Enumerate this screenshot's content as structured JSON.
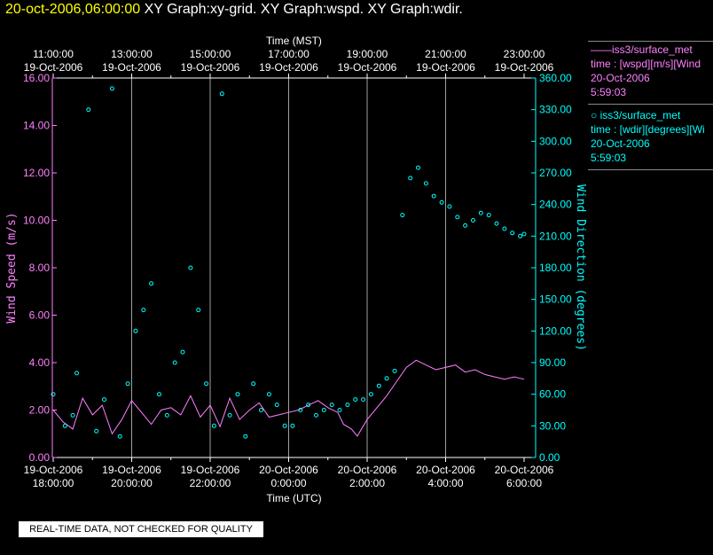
{
  "title": {
    "date": "20-oct-2006,06:00:00",
    "graphs": "XY Graph:xy-grid.  XY Graph:wspd.  XY Graph:wdir."
  },
  "footer_note": "REAL-TIME DATA, NOT CHECKED FOR QUALITY",
  "legend": [
    {
      "marker": "line",
      "name": "iss3/surface_met",
      "field": "time : [wspd][m/s][Wind",
      "date": "20-Oct-2006",
      "time": "5:59:03",
      "color": "#ff80ff"
    },
    {
      "marker": "circle",
      "name": "iss3/surface_met",
      "field": "time : [wdir][degrees][Wi",
      "date": "20-Oct-2006",
      "time": "5:59:03",
      "color": "#00ffff"
    }
  ],
  "colors": {
    "wspd": "#ff80ff",
    "wdir": "#00ffff",
    "grid": "#a0a0a0",
    "axis": "#ffffff"
  },
  "chart_data": {
    "type": "line",
    "top_axis_label": "Time (MST)",
    "bottom_axis_label": "Time (UTC)",
    "top_ticks": [
      {
        "d": "19-Oct-2006",
        "t": "11:00:00"
      },
      {
        "d": "19-Oct-2006",
        "t": "13:00:00"
      },
      {
        "d": "19-Oct-2006",
        "t": "15:00:00"
      },
      {
        "d": "19-Oct-2006",
        "t": "17:00:00"
      },
      {
        "d": "19-Oct-2006",
        "t": "19:00:00"
      },
      {
        "d": "19-Oct-2006",
        "t": "21:00:00"
      },
      {
        "d": "19-Oct-2006",
        "t": "23:00:00"
      }
    ],
    "bottom_ticks": [
      {
        "d": "19-Oct-2006",
        "t": "18:00:00"
      },
      {
        "d": "19-Oct-2006",
        "t": "20:00:00"
      },
      {
        "d": "19-Oct-2006",
        "t": "22:00:00"
      },
      {
        "d": "20-Oct-2006",
        "t": "0:00:00"
      },
      {
        "d": "20-Oct-2006",
        "t": "2:00:00"
      },
      {
        "d": "20-Oct-2006",
        "t": "4:00:00"
      },
      {
        "d": "20-Oct-2006",
        "t": "6:00:00"
      }
    ],
    "x_range_hours": [
      0,
      12
    ],
    "left_axis": {
      "label": "Wind Speed (m/s)",
      "range": [
        0,
        16
      ],
      "ticks": [
        "0.00",
        "2.00",
        "4.00",
        "6.00",
        "8.00",
        "10.00",
        "12.00",
        "14.00",
        "16.00"
      ]
    },
    "right_axis": {
      "label": "Wind Direction (degrees)",
      "range": [
        0,
        360
      ],
      "ticks": [
        "0.00",
        "30.00",
        "60.00",
        "90.00",
        "120.00",
        "150.00",
        "180.00",
        "210.00",
        "240.00",
        "270.00",
        "300.00",
        "330.00",
        "360.00"
      ]
    },
    "series": [
      {
        "name": "wspd",
        "axis": "left",
        "style": "line",
        "x": [
          0,
          0.25,
          0.5,
          0.75,
          1,
          1.25,
          1.5,
          1.75,
          2,
          2.25,
          2.5,
          2.75,
          3,
          3.25,
          3.5,
          3.75,
          4,
          4.25,
          4.5,
          4.75,
          5,
          5.25,
          5.5,
          5.75,
          6,
          6.25,
          6.5,
          6.75,
          7,
          7.25,
          7.4,
          7.6,
          7.75,
          8,
          8.25,
          8.5,
          8.75,
          9,
          9.25,
          9.5,
          9.75,
          10,
          10.25,
          10.5,
          10.75,
          11,
          11.25,
          11.5,
          11.75,
          12
        ],
        "y": [
          2.0,
          1.5,
          1.2,
          2.5,
          1.8,
          2.2,
          1.0,
          1.6,
          2.4,
          1.9,
          1.4,
          2.0,
          2.1,
          1.8,
          2.6,
          1.7,
          2.2,
          1.3,
          2.5,
          1.6,
          2.0,
          2.3,
          1.7,
          1.8,
          1.9,
          2.0,
          2.2,
          2.4,
          2.1,
          1.9,
          1.4,
          1.2,
          0.9,
          1.6,
          2.1,
          2.6,
          3.2,
          3.8,
          4.1,
          3.9,
          3.7,
          3.8,
          3.9,
          3.6,
          3.7,
          3.5,
          3.4,
          3.3,
          3.4,
          3.3
        ]
      },
      {
        "name": "wdir",
        "axis": "right",
        "style": "circle",
        "x": [
          0,
          0.3,
          0.5,
          0.6,
          0.9,
          1.1,
          1.3,
          1.5,
          1.7,
          1.9,
          2.1,
          2.3,
          2.5,
          2.7,
          2.9,
          3.1,
          3.3,
          3.5,
          3.7,
          3.9,
          4.1,
          4.3,
          4.5,
          4.7,
          4.9,
          5.1,
          5.3,
          5.5,
          5.7,
          5.9,
          6.1,
          6.3,
          6.5,
          6.7,
          6.9,
          7.1,
          7.3,
          7.5,
          7.7,
          7.9,
          8.1,
          8.3,
          8.5,
          8.7,
          8.9,
          9.1,
          9.3,
          9.5,
          9.7,
          9.9,
          10.1,
          10.3,
          10.5,
          10.7,
          10.9,
          11.1,
          11.3,
          11.5,
          11.7,
          11.9,
          12
        ],
        "y": [
          60,
          30,
          40,
          80,
          330,
          25,
          55,
          350,
          20,
          70,
          120,
          140,
          165,
          60,
          40,
          90,
          100,
          180,
          140,
          70,
          30,
          345,
          40,
          60,
          20,
          70,
          45,
          60,
          50,
          30,
          30,
          45,
          50,
          40,
          45,
          50,
          45,
          50,
          55,
          55,
          60,
          68,
          75,
          82,
          230,
          265,
          275,
          260,
          248,
          242,
          238,
          228,
          220,
          225,
          232,
          230,
          222,
          217,
          213,
          210,
          212
        ]
      }
    ]
  }
}
